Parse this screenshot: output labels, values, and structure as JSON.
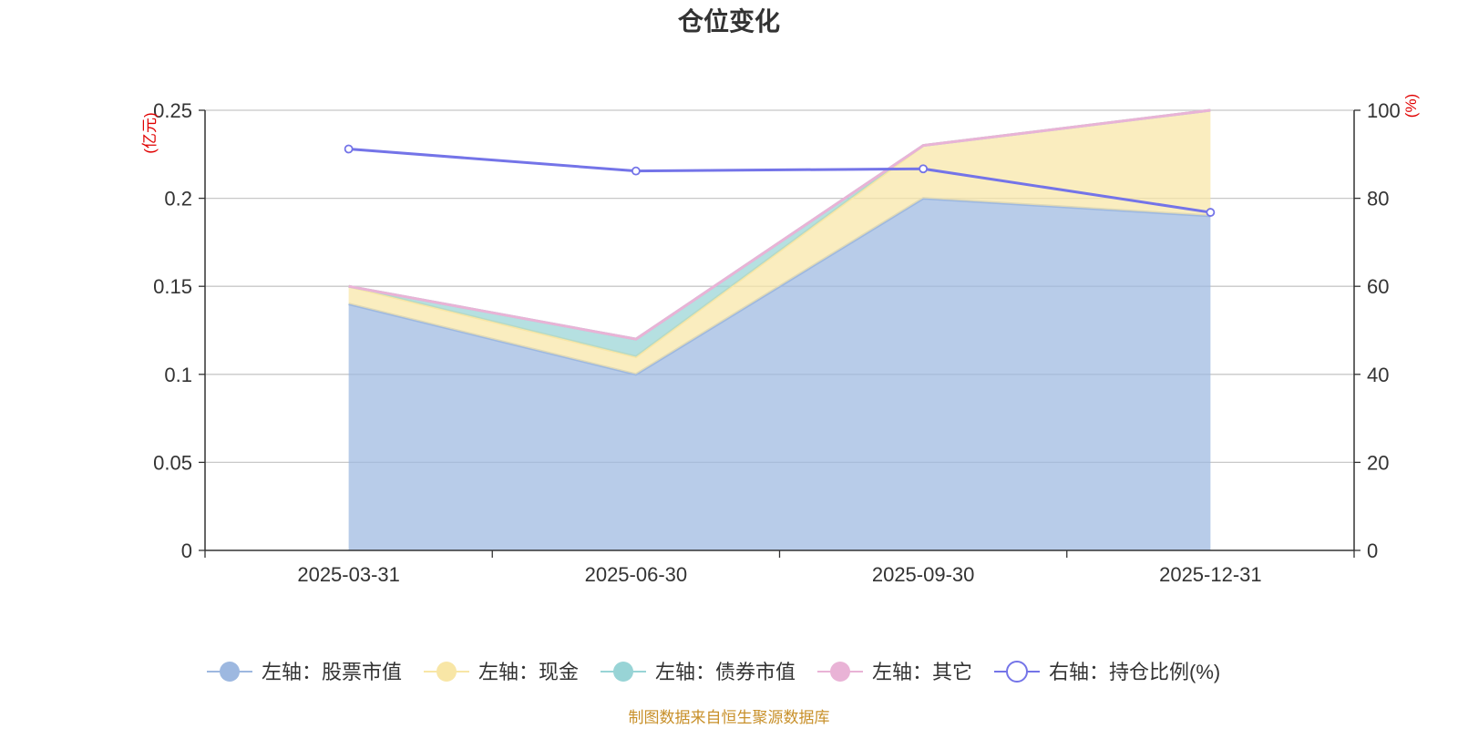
{
  "chart_data": {
    "type": "area",
    "title": "仓位变化",
    "categories": [
      "2025-03-31",
      "2025-06-30",
      "2025-09-30",
      "2025-12-31"
    ],
    "left_axis": {
      "unit": "(亿元)",
      "ylim": [
        0,
        0.25
      ],
      "ticks": [
        "0",
        "0.05",
        "0.1",
        "0.15",
        "0.2",
        "0.25"
      ]
    },
    "right_axis": {
      "unit": "(%)",
      "ylim": [
        0,
        100
      ],
      "ticks": [
        "0",
        "20",
        "40",
        "60",
        "80",
        "100"
      ]
    },
    "series": [
      {
        "name": "左轴：股票市值",
        "axis": "left",
        "kind": "stacked-area",
        "color": "#9db8e0",
        "values": [
          0.14,
          0.1,
          0.2,
          0.19
        ]
      },
      {
        "name": "左轴：现金",
        "axis": "left",
        "kind": "stacked-area",
        "color": "#f8e6a6",
        "values": [
          0.01,
          0.01,
          0.03,
          0.06
        ]
      },
      {
        "name": "左轴：债券市值",
        "axis": "left",
        "kind": "stacked-area",
        "color": "#98d4d6",
        "values": [
          0.0,
          0.01,
          0.0,
          0.0
        ]
      },
      {
        "name": "左轴：其它",
        "axis": "left",
        "kind": "stacked-area",
        "color": "#e9b3d6",
        "values": [
          0.0,
          0.0,
          0.0,
          0.0
        ]
      },
      {
        "name": "右轴：持仓比例(%)",
        "axis": "right",
        "kind": "line",
        "color": "#7474e8",
        "values": [
          91.2,
          86.2,
          86.7,
          76.8
        ]
      }
    ],
    "legend_position": "bottom",
    "grid": true
  },
  "footer": {
    "source": "制图数据来自恒生聚源数据库"
  }
}
